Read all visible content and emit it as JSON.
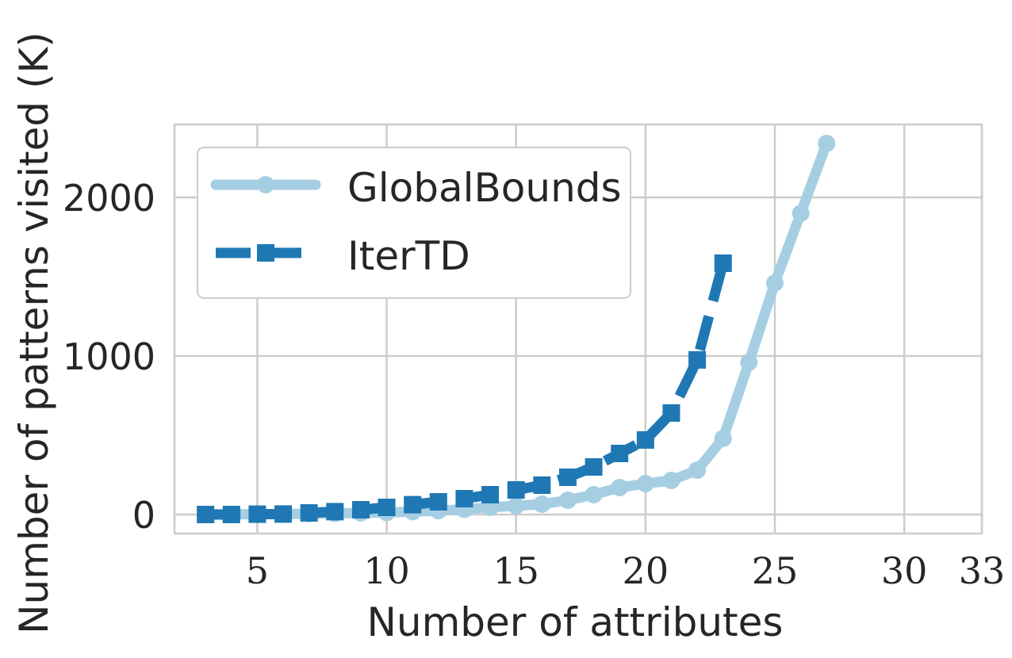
{
  "chart_data": {
    "type": "line",
    "title": "",
    "xlabel": "Number of attributes",
    "ylabel": "Number of patterns visited (K)",
    "xlim": [
      1.8,
      33
    ],
    "ylim": [
      -120,
      2460
    ],
    "x_ticks": [
      5,
      10,
      15,
      20,
      25,
      30,
      33
    ],
    "y_ticks": [
      0,
      1000,
      2000
    ],
    "grid": true,
    "legend_position": "top-left",
    "series": [
      {
        "name": "GlobalBounds",
        "color": "#a6cee3",
        "line_style": "solid",
        "marker": "circle",
        "x": [
          3,
          4,
          5,
          6,
          7,
          8,
          9,
          10,
          11,
          12,
          13,
          14,
          15,
          16,
          17,
          18,
          19,
          20,
          21,
          22,
          23,
          24,
          25,
          26,
          27
        ],
        "y": [
          0,
          1,
          2,
          3,
          5,
          7,
          10,
          13,
          18,
          24,
          33,
          45,
          55,
          65,
          90,
          125,
          170,
          195,
          215,
          280,
          480,
          960,
          1460,
          1900,
          2340
        ]
      },
      {
        "name": "IterTD",
        "color": "#1f78b4",
        "line_style": "dashed",
        "marker": "square",
        "x": [
          3,
          4,
          5,
          6,
          7,
          8,
          9,
          10,
          11,
          12,
          13,
          14,
          15,
          16,
          17,
          18,
          19,
          20,
          21,
          22,
          23
        ],
        "y": [
          0,
          0,
          2,
          3,
          10,
          18,
          30,
          45,
          62,
          80,
          100,
          125,
          155,
          185,
          235,
          300,
          385,
          470,
          640,
          975,
          1585
        ]
      }
    ]
  }
}
